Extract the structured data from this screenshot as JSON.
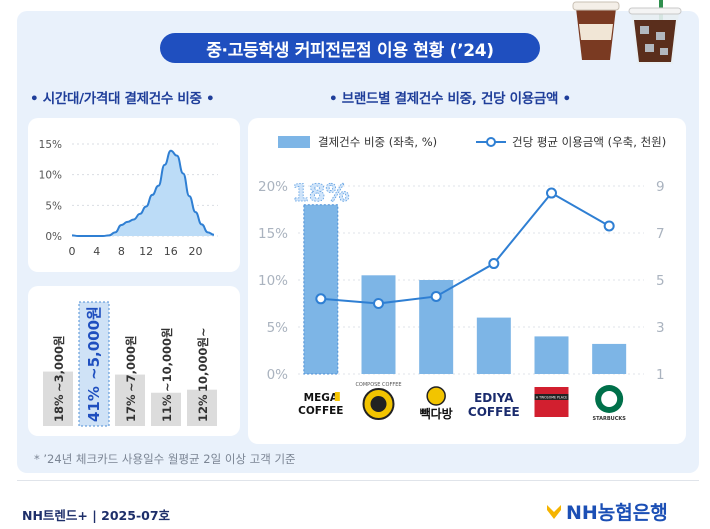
{
  "title": "중·고등학생 커피전문점 이용 현황 (’24)",
  "left_section_title": "• 시간대/가격대 결제건수 비중 •",
  "right_section_title": "• 브랜드별 결제건수 비중, 건당 이용금액 •",
  "footnote": "* ’24년 체크카드 사용일수 월평균 2일 이상 고객 기준",
  "footer": {
    "source": "NH트렌드+ | 2025-07호",
    "bank": "NH농협은행"
  },
  "colors": {
    "accent": "#1f4fbf",
    "bar": "#7db5e6",
    "line": "#2f7fd3",
    "area_fill": "#bcdcf7"
  },
  "chart_data": [
    {
      "type": "area",
      "xticks": [
        "0",
        "4",
        "8",
        "12",
        "16",
        "20"
      ],
      "yticks": [
        "0%",
        "5%",
        "10%",
        "15%"
      ],
      "x": [
        0,
        1,
        2,
        3,
        4,
        5,
        6,
        7,
        8,
        9,
        10,
        11,
        12,
        13,
        14,
        15,
        16,
        17,
        18,
        19,
        20,
        21,
        22,
        23
      ],
      "values": [
        0.1,
        0,
        0,
        0,
        0,
        0,
        0.1,
        0.6,
        1.8,
        2.3,
        2.7,
        3.6,
        4.8,
        6.7,
        8.2,
        11.6,
        13.9,
        13.1,
        10.2,
        6.5,
        3.9,
        1.9,
        0.6,
        0.2
      ],
      "xlim": [
        0,
        23
      ],
      "ylim": [
        0,
        15
      ]
    },
    {
      "type": "bar",
      "categories": [
        "~3,000원",
        "~5,000원",
        "~7,000원",
        "~10,000원",
        "10,000원~"
      ],
      "values": [
        18,
        41,
        17,
        11,
        12
      ],
      "value_labels": [
        "18%",
        "41%",
        "17%",
        "11%",
        "12%"
      ],
      "highlight": "~5,000원"
    },
    {
      "type": "bar",
      "categories": [
        "MEGA COFFEE",
        "COMPOSE COFFEE",
        "빽다방",
        "EDIYA COFFEE",
        "A TWOSOME PLACE",
        "STARBUCKS"
      ],
      "legend": [
        "결제건수 비중 (좌축, %)",
        "건당 평균 이용금액 (우축, 천원)"
      ],
      "series": [
        {
          "name": "결제건수 비중 (좌축, %)",
          "type": "bar",
          "axis": "left",
          "values": [
            18.0,
            10.5,
            10.0,
            6.0,
            4.0,
            3.2
          ]
        },
        {
          "name": "건당 평균 이용금액 (우축, 천원)",
          "type": "line",
          "axis": "right",
          "values": [
            4.2,
            4.0,
            4.3,
            5.7,
            8.7,
            7.3
          ]
        }
      ],
      "highlight_label": "18%",
      "left_ticks": [
        "0%",
        "5%",
        "10%",
        "15%",
        "20%"
      ],
      "right_ticks": [
        "1",
        "3",
        "5",
        "7",
        "9"
      ],
      "ylim_left": [
        0,
        20
      ],
      "ylim_right": [
        1,
        9
      ],
      "logos": {
        "mega": [
          "MEGA",
          "COFFEE"
        ],
        "compose": "COMPOSE COFFEE",
        "paik": "빽다방",
        "ediya": [
          "EDIYA",
          "COFFEE"
        ],
        "twosome": "A TWOSOME PLACE",
        "starbucks": "STARBUCKS"
      }
    }
  ]
}
